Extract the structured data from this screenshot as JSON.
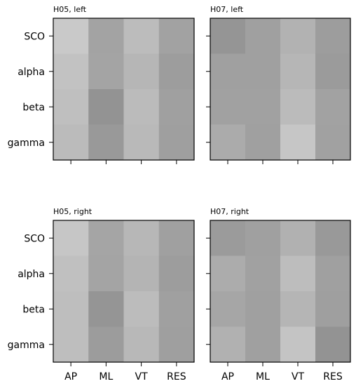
{
  "chart_data": [
    {
      "type": "heatmap",
      "title": "H05, left",
      "rows": [
        "SCO",
        "alpha",
        "beta",
        "gamma"
      ],
      "columns": [
        "AP",
        "ML",
        "VT",
        "RES"
      ],
      "show_row_labels": true,
      "show_column_labels": false,
      "values": [
        [
          "#c9c9c9",
          "#a3a3a3",
          "#bcbcbc",
          "#a2a2a2"
        ],
        [
          "#c2c2c2",
          "#a4a4a4",
          "#b6b6b6",
          "#9d9d9d"
        ],
        [
          "#bfbfbf",
          "#939393",
          "#bbbbbb",
          "#a0a0a0"
        ],
        [
          "#bbbbbb",
          "#999999",
          "#b9b9b9",
          "#9f9f9f"
        ]
      ]
    },
    {
      "type": "heatmap",
      "title": "H07, left",
      "rows": [
        "SCO",
        "alpha",
        "beta",
        "gamma"
      ],
      "columns": [
        "AP",
        "ML",
        "VT",
        "RES"
      ],
      "show_row_labels": false,
      "show_column_labels": false,
      "values": [
        [
          "#959595",
          "#a0a0a0",
          "#b2b2b2",
          "#9d9d9d"
        ],
        [
          "#a0a0a0",
          "#a0a0a0",
          "#b6b6b6",
          "#9b9b9b"
        ],
        [
          "#a1a1a1",
          "#a1a1a1",
          "#bbbbbb",
          "#a2a2a2"
        ],
        [
          "#ababab",
          "#a0a0a0",
          "#c6c6c6",
          "#a1a1a1"
        ]
      ]
    },
    {
      "type": "heatmap",
      "title": "H05, right",
      "rows": [
        "SCO",
        "alpha",
        "beta",
        "gamma"
      ],
      "columns": [
        "AP",
        "ML",
        "VT",
        "RES"
      ],
      "show_row_labels": true,
      "show_column_labels": true,
      "values": [
        [
          "#c6c6c6",
          "#a5a5a5",
          "#b7b7b7",
          "#a0a0a0"
        ],
        [
          "#c0c0c0",
          "#a4a4a4",
          "#b4b4b4",
          "#9d9d9d"
        ],
        [
          "#bebebe",
          "#959595",
          "#bcbcbc",
          "#a0a0a0"
        ],
        [
          "#bebebe",
          "#9c9c9c",
          "#b8b8b8",
          "#9f9f9f"
        ]
      ]
    },
    {
      "type": "heatmap",
      "title": "H07, right",
      "rows": [
        "SCO",
        "alpha",
        "beta",
        "gamma"
      ],
      "columns": [
        "AP",
        "ML",
        "VT",
        "RES"
      ],
      "show_row_labels": false,
      "show_column_labels": true,
      "values": [
        [
          "#9b9b9b",
          "#a0a0a0",
          "#b1b1b1",
          "#999999"
        ],
        [
          "#acacac",
          "#a1a1a1",
          "#bdbdbd",
          "#a0a0a0"
        ],
        [
          "#a6a6a6",
          "#a0a0a0",
          "#b5b5b5",
          "#9f9f9f"
        ],
        [
          "#b1b1b1",
          "#a0a0a0",
          "#c4c4c4",
          "#939393"
        ]
      ]
    }
  ]
}
